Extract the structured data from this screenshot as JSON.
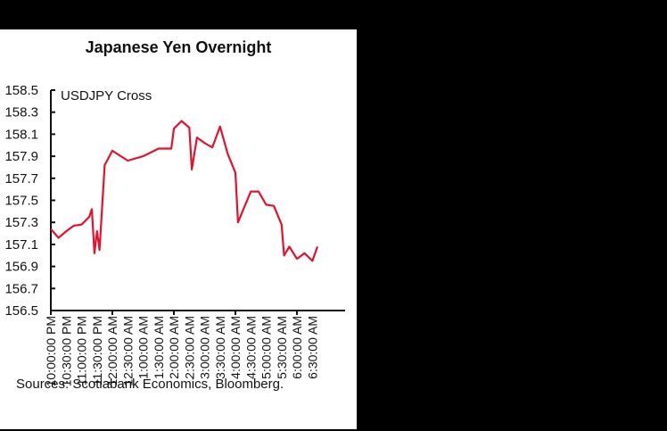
{
  "title": "Japanese Yen Overnight",
  "source": "Sources: Scotiabank Economics, Bloomberg.",
  "colors": {
    "line": "#e8112d",
    "background_outer": "#000000",
    "panel": "#ffffff"
  },
  "chart_data": {
    "type": "line",
    "title": "Japanese Yen Overnight",
    "annotation": "USDJPY Cross",
    "xlabel": "",
    "ylabel": "",
    "ylim": [
      156.5,
      158.5
    ],
    "yticks": [
      "158.5",
      "158.3",
      "158.1",
      "157.9",
      "157.7",
      "157.5",
      "157.3",
      "157.1",
      "156.9",
      "156.7",
      "156.5"
    ],
    "xticks": [
      "10:00:00 PM",
      "10:30:00 PM",
      "11:00:00 PM",
      "11:30:00 PM",
      "12:00:00 AM",
      "12:30:00 AM",
      "1:00:00 AM",
      "1:30:00 AM",
      "2:00:00 AM",
      "2:30:00 AM",
      "3:00:00 AM",
      "3:30:00 AM",
      "4:00:00 AM",
      "4:30:00 AM",
      "5:00:00 AM",
      "5:30:00 AM",
      "6:00:00 AM",
      "6:30:00 AM"
    ],
    "grid": false,
    "legend": "none",
    "series": [
      {
        "name": "USDJPY Cross",
        "x": [
          "10:00 PM",
          "10:15 PM",
          "10:30 PM",
          "10:45 PM",
          "11:00 PM",
          "11:15 PM",
          "11:20 PM",
          "11:25 PM",
          "11:30 PM",
          "11:35 PM",
          "11:45 PM",
          "12:00 AM",
          "12:30 AM",
          "1:00 AM",
          "1:30 AM",
          "1:55 AM",
          "2:00 AM",
          "2:15 AM",
          "2:30 AM",
          "2:35 AM",
          "2:45 AM",
          "3:00 AM",
          "3:15 AM",
          "3:30 AM",
          "3:45 AM",
          "4:00 AM",
          "4:05 AM",
          "4:30 AM",
          "4:45 AM",
          "5:00 AM",
          "5:15 AM",
          "5:30 AM",
          "5:35 AM",
          "5:45 AM",
          "6:00 AM",
          "6:15 AM",
          "6:30 AM",
          "6:40 AM"
        ],
        "values": [
          157.24,
          157.16,
          157.22,
          157.27,
          157.28,
          157.35,
          157.42,
          157.02,
          157.22,
          157.05,
          157.82,
          157.95,
          157.86,
          157.9,
          157.97,
          157.97,
          158.15,
          158.22,
          158.16,
          157.78,
          158.07,
          158.02,
          157.98,
          158.17,
          157.92,
          157.75,
          157.3,
          157.58,
          157.58,
          157.46,
          157.45,
          157.28,
          157.0,
          157.08,
          156.97,
          157.02,
          156.95,
          157.08
        ]
      }
    ]
  }
}
